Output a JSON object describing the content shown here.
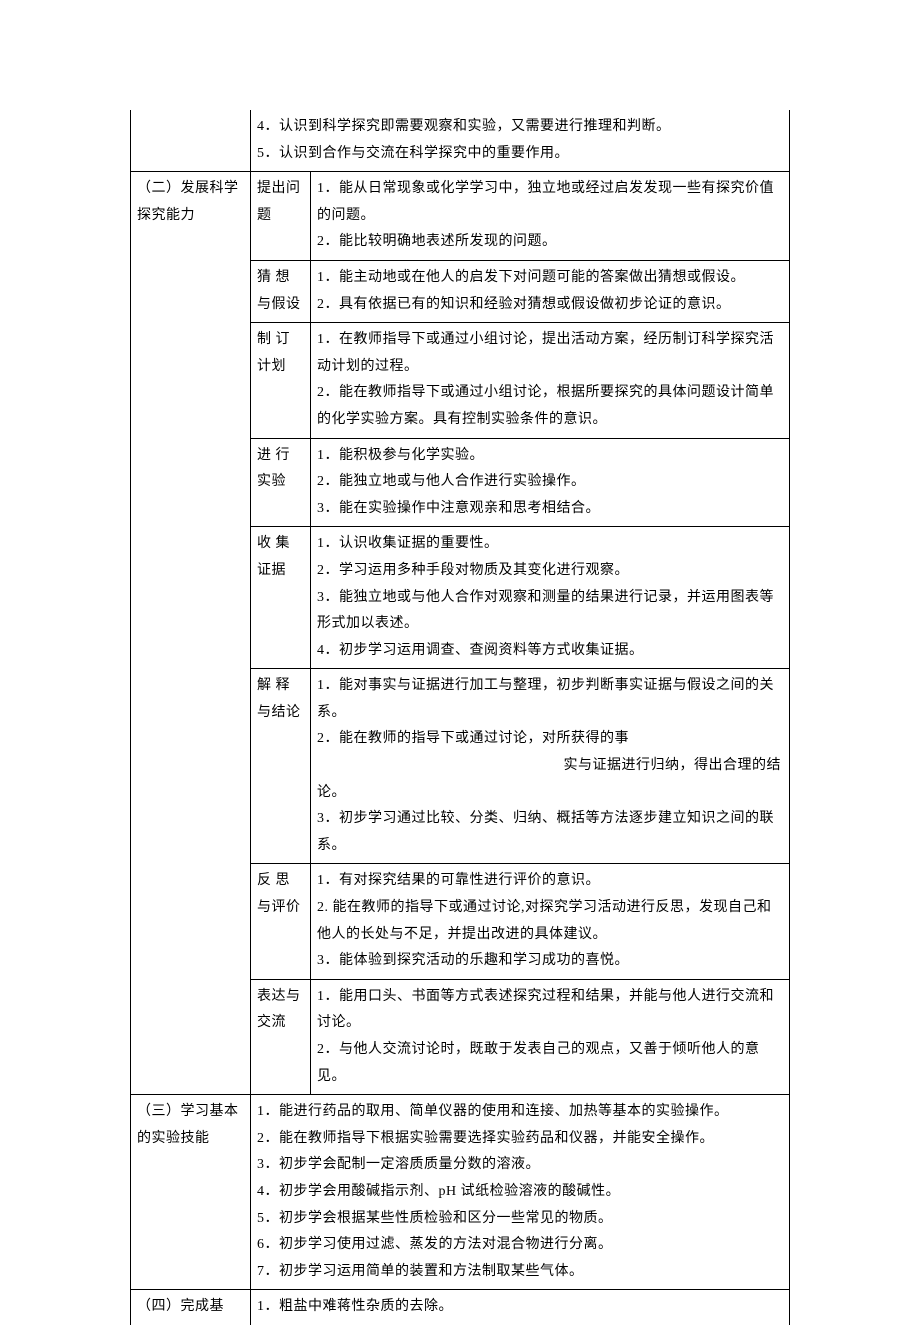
{
  "row0": {
    "c3": "4．认识到科学探究即需要观察和实验，又需要进行推理和判断。\n5．认识到合作与交流在科学探究中的重要作用。"
  },
  "section2": {
    "title": "（二）发展科学探究能力",
    "rows": [
      {
        "sub": "提出问题",
        "content": "1．能从日常现象或化学学习中，独立地或经过启发发现一些有探究价值的问题。\n2．能比较明确地表述所发现的问题。"
      },
      {
        "sub": "猜 想 与假设",
        "content": "1．能主动地或在他人的启发下对问题可能的答案做出猜想或假设。\n2．具有依据已有的知识和经验对猜想或假设做初步论证的意识。"
      },
      {
        "sub": "制 订 计划",
        "content": "1．在教师指导下或通过小组讨论，提出活动方案，经历制订科学探究活动计划的过程。\n2．能在教师指导下或通过小组讨论，根据所要探究的具体问题设计简单的化学实验方案。具有控制实验条件的意识。"
      },
      {
        "sub": "进 行 实验",
        "content": "1．能积极参与化学实验。\n2．能独立地或与他人合作进行实验操作。\n3．能在实验操作中注意观亲和思考相结合。"
      },
      {
        "sub": "收 集 证据",
        "content": "1．认识收集证据的重要性。\n2．学习运用多种手段对物质及其变化进行观察。\n3．能独立地或与他人合作对观察和测量的结果进行记录，并运用图表等形式加以表述。\n4．初步学习运用调查、查阅资料等方式收集证据。"
      },
      {
        "sub": "解 释 与结论",
        "content": "1．能对事实与证据进行加工与整理，初步判断事实证据与假设之间的关系。\n2．能在教师的指导下或通过讨论，对所获得的事\n　　　　　　　　　　　　　　　　　实与证据进行归纳，得出合理的结论。\n3．初步学习通过比较、分类、归纳、概括等方法逐步建立知识之间的联系。"
      },
      {
        "sub": "反 思 与评价",
        "content": "1．有对探究结果的可靠性进行评价的意识。\n2. 能在教师的指导下或通过讨论,对探究学习活动进行反思，发现自己和他人的长处与不足，并提出改进的具体建议。\n3．能体验到探究活动的乐趣和学习成功的喜悦。"
      },
      {
        "sub": "表达与交流",
        "content": "1．能用口头、书面等方式表述探究过程和结果，并能与他人进行交流和讨论。\n2．与他人交流讨论时，既敢于发表自己的观点，又善于倾听他人的意见。"
      }
    ]
  },
  "section3": {
    "title": "（三）学习基本的实验技能",
    "content": "1．能进行药品的取用、简单仪器的使用和连接、加热等基本的实验操作。\n2．能在教师指导下根据实验需要选择实验药品和仪器，并能安全操作。\n3．初步学会配制一定溶质质量分数的溶液。\n4．初步学会用酸碱指示剂、pH 试纸检验溶液的酸碱性。\n5．初步学会根据某些性质检验和区分一些常见的物质。\n6．初步学习使用过滤、蒸发的方法对混合物进行分离。\n7．初步学习运用简单的装置和方法制取某些气体。"
  },
  "section4": {
    "title": "（四）完成基",
    "content": "1．粗盐中难蒋性杂质的去除。"
  }
}
